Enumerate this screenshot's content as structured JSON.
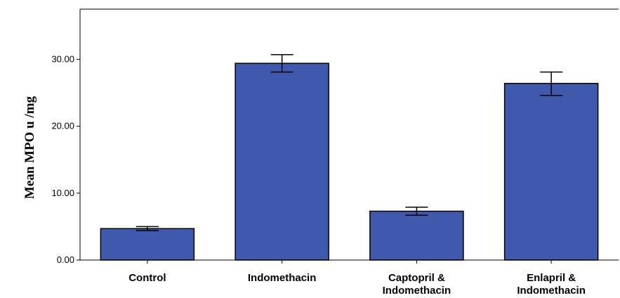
{
  "chart_data": {
    "type": "bar",
    "ylabel": "Mean MPO u /mg",
    "xlabel": "",
    "categories": [
      [
        "Control"
      ],
      [
        "Indomethacin"
      ],
      [
        "Captopril &",
        "Indomethacin"
      ],
      [
        "Enlapril &",
        "Indomethacin"
      ]
    ],
    "values": [
      4.7,
      29.4,
      7.3,
      26.4
    ],
    "error_low": [
      4.4,
      28.1,
      6.7,
      24.6
    ],
    "error_high": [
      5.0,
      30.7,
      7.9,
      28.1
    ],
    "ylim": [
      0,
      37.5
    ],
    "yticks": [
      0,
      10,
      20,
      30
    ],
    "ytick_labels": [
      "0.00",
      "10.00",
      "20.00",
      "30.00"
    ],
    "bar_color": "#3f59ad",
    "grid": false
  }
}
